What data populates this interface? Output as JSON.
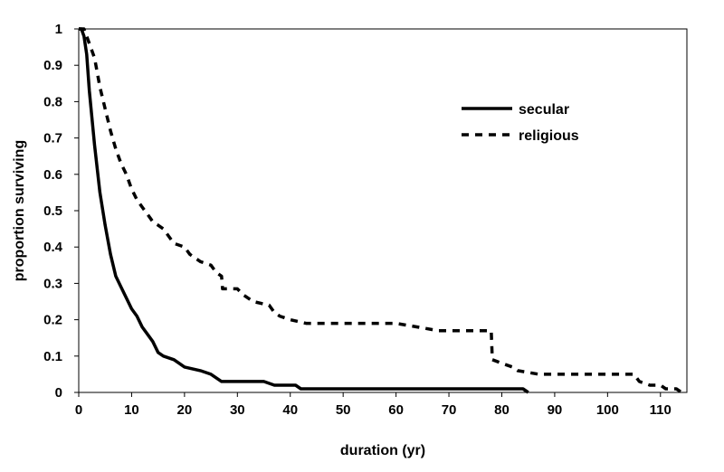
{
  "chart_data": {
    "type": "line",
    "xlabel": "duration (yr)",
    "ylabel": "proportion surviving",
    "xlim": [
      0,
      115
    ],
    "ylim": [
      0,
      1
    ],
    "x_ticks": [
      0,
      10,
      20,
      30,
      40,
      50,
      60,
      70,
      80,
      90,
      100,
      110
    ],
    "y_ticks": [
      0,
      0.1,
      0.2,
      0.3,
      0.4,
      0.5,
      0.6,
      0.7,
      0.8,
      0.9,
      1
    ],
    "y_tick_labels": [
      "0",
      "0.1",
      "0.2",
      "0.3",
      "0.4",
      "0.5",
      "0.6",
      "0.7",
      "0.8",
      "0.9",
      "1"
    ],
    "grid": false,
    "legend_position": "top-right",
    "series": [
      {
        "name": "secular",
        "style": "solid",
        "color": "#000000",
        "points": [
          [
            0,
            1.0
          ],
          [
            0.5,
            1.0
          ],
          [
            1,
            0.98
          ],
          [
            1.5,
            0.93
          ],
          [
            2,
            0.83
          ],
          [
            3,
            0.68
          ],
          [
            4,
            0.55
          ],
          [
            5,
            0.46
          ],
          [
            6,
            0.38
          ],
          [
            7,
            0.32
          ],
          [
            8,
            0.29
          ],
          [
            9,
            0.26
          ],
          [
            10,
            0.23
          ],
          [
            11,
            0.21
          ],
          [
            12,
            0.18
          ],
          [
            13,
            0.16
          ],
          [
            14,
            0.14
          ],
          [
            15,
            0.11
          ],
          [
            16,
            0.1
          ],
          [
            18,
            0.09
          ],
          [
            19,
            0.08
          ],
          [
            20,
            0.07
          ],
          [
            23,
            0.06
          ],
          [
            25,
            0.05
          ],
          [
            27,
            0.03
          ],
          [
            35,
            0.03
          ],
          [
            37,
            0.02
          ],
          [
            41,
            0.02
          ],
          [
            42,
            0.01
          ],
          [
            84,
            0.01
          ],
          [
            85,
            0.0
          ]
        ]
      },
      {
        "name": "religious",
        "style": "dashed",
        "color": "#000000",
        "points": [
          [
            0,
            1.0
          ],
          [
            1,
            1.0
          ],
          [
            2,
            0.96
          ],
          [
            3,
            0.92
          ],
          [
            4,
            0.84
          ],
          [
            5,
            0.78
          ],
          [
            6,
            0.72
          ],
          [
            7,
            0.67
          ],
          [
            8,
            0.63
          ],
          [
            9,
            0.6
          ],
          [
            10,
            0.56
          ],
          [
            11,
            0.53
          ],
          [
            12,
            0.51
          ],
          [
            13,
            0.49
          ],
          [
            14,
            0.47
          ],
          [
            15,
            0.46
          ],
          [
            16,
            0.45
          ],
          [
            17,
            0.43
          ],
          [
            18,
            0.41
          ],
          [
            20,
            0.4
          ],
          [
            21,
            0.38
          ],
          [
            23,
            0.36
          ],
          [
            25,
            0.35
          ],
          [
            26,
            0.33
          ],
          [
            27,
            0.32
          ],
          [
            27.2,
            0.285
          ],
          [
            30,
            0.285
          ],
          [
            31,
            0.27
          ],
          [
            33,
            0.25
          ],
          [
            36,
            0.24
          ],
          [
            37,
            0.22
          ],
          [
            38,
            0.21
          ],
          [
            40,
            0.2
          ],
          [
            43,
            0.19
          ],
          [
            60,
            0.19
          ],
          [
            64,
            0.18
          ],
          [
            68,
            0.17
          ],
          [
            78,
            0.17
          ],
          [
            78.2,
            0.09
          ],
          [
            80,
            0.08
          ],
          [
            82,
            0.07
          ],
          [
            83,
            0.06
          ],
          [
            87,
            0.05
          ],
          [
            105,
            0.05
          ],
          [
            106,
            0.03
          ],
          [
            108,
            0.02
          ],
          [
            110,
            0.02
          ],
          [
            111,
            0.01
          ],
          [
            113,
            0.01
          ],
          [
            114,
            0.0
          ]
        ]
      }
    ]
  }
}
